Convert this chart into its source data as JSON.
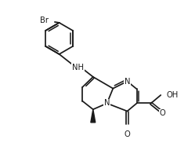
{
  "bg": "#ffffff",
  "lc": "#1a1a1a",
  "lw": 1.25,
  "fs": 7.2,
  "figsize": [
    2.49,
    1.82
  ],
  "dpi": 100,
  "xlim": [
    0,
    9.5
  ],
  "ylim": [
    1.5,
    9.5
  ]
}
